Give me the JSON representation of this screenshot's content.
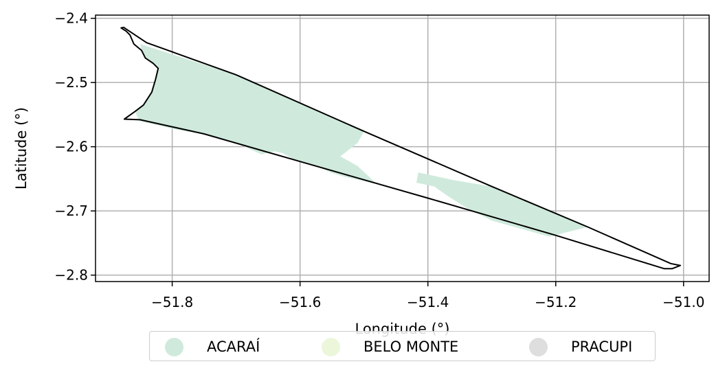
{
  "chart_data": {
    "type": "map",
    "xlabel": "Longitude (°)",
    "ylabel": "Latitude (°)",
    "xlim": [
      -51.92,
      -50.96
    ],
    "ylim": [
      -2.81,
      -2.395
    ],
    "x_ticks": [
      -51.8,
      -51.6,
      -51.4,
      -51.2,
      -51.0
    ],
    "x_tick_labels": [
      "−51.8",
      "−51.6",
      "−51.4",
      "−51.2",
      "−51.0"
    ],
    "y_ticks": [
      -2.4,
      -2.5,
      -2.6,
      -2.7,
      -2.8
    ],
    "y_tick_labels": [
      "−2.4",
      "−2.5",
      "−2.6",
      "−2.7",
      "−2.8"
    ],
    "grid": true,
    "legend_position": "bottom-center",
    "legend": [
      {
        "name": "ACARAÍ",
        "color": "#cfeadc"
      },
      {
        "name": "BELO MONTE",
        "color": "#ecf6da"
      },
      {
        "name": "PRACUPI",
        "color": "#dedede"
      }
    ],
    "outline": [
      [
        -51.876,
        -2.414
      ],
      [
        -51.84,
        -2.438
      ],
      [
        -51.7,
        -2.488
      ],
      [
        -51.5,
        -2.576
      ],
      [
        -51.3,
        -2.662
      ],
      [
        -51.15,
        -2.725
      ],
      [
        -51.02,
        -2.782
      ],
      [
        -51.005,
        -2.785
      ],
      [
        -51.018,
        -2.79
      ],
      [
        -51.03,
        -2.79
      ],
      [
        -51.2,
        -2.738
      ],
      [
        -51.4,
        -2.68
      ],
      [
        -51.6,
        -2.623
      ],
      [
        -51.75,
        -2.58
      ],
      [
        -51.85,
        -2.558
      ],
      [
        -51.875,
        -2.557
      ],
      [
        -51.858,
        -2.545
      ],
      [
        -51.845,
        -2.535
      ],
      [
        -51.832,
        -2.515
      ],
      [
        -51.826,
        -2.495
      ],
      [
        -51.822,
        -2.478
      ],
      [
        -51.83,
        -2.47
      ],
      [
        -51.842,
        -2.462
      ],
      [
        -51.848,
        -2.45
      ],
      [
        -51.86,
        -2.44
      ],
      [
        -51.866,
        -2.426
      ],
      [
        -51.872,
        -2.42
      ],
      [
        -51.88,
        -2.415
      ]
    ],
    "regions": [
      {
        "name": "ACARAÍ",
        "coordinates": [
          [
            -51.85,
            -2.44
          ],
          [
            -51.7,
            -2.488
          ],
          [
            -51.5,
            -2.576
          ],
          [
            -51.51,
            -2.594
          ],
          [
            -51.537,
            -2.615
          ],
          [
            -51.51,
            -2.63
          ],
          [
            -51.48,
            -2.658
          ],
          [
            -51.53,
            -2.647
          ],
          [
            -51.55,
            -2.641
          ],
          [
            -51.57,
            -2.632
          ],
          [
            -51.6,
            -2.623
          ],
          [
            -51.61,
            -2.62
          ],
          [
            -51.627,
            -2.61
          ],
          [
            -51.64,
            -2.607
          ],
          [
            -51.66,
            -2.612
          ],
          [
            -51.71,
            -2.59
          ],
          [
            -51.75,
            -2.58
          ],
          [
            -51.79,
            -2.574
          ],
          [
            -51.83,
            -2.565
          ],
          [
            -51.852,
            -2.56
          ],
          [
            -51.858,
            -2.545
          ],
          [
            -51.845,
            -2.535
          ],
          [
            -51.832,
            -2.515
          ],
          [
            -51.826,
            -2.495
          ],
          [
            -51.822,
            -2.478
          ],
          [
            -51.83,
            -2.47
          ],
          [
            -51.842,
            -2.462
          ],
          [
            -51.848,
            -2.45
          ]
        ]
      },
      {
        "name": "ACARAÍ",
        "coordinates": [
          [
            -51.415,
            -2.64
          ],
          [
            -51.36,
            -2.652
          ],
          [
            -51.3,
            -2.662
          ],
          [
            -51.15,
            -2.725
          ],
          [
            -51.21,
            -2.74
          ],
          [
            -51.3,
            -2.715
          ],
          [
            -51.34,
            -2.695
          ],
          [
            -51.37,
            -2.676
          ],
          [
            -51.39,
            -2.662
          ],
          [
            -51.418,
            -2.656
          ]
        ]
      }
    ]
  }
}
